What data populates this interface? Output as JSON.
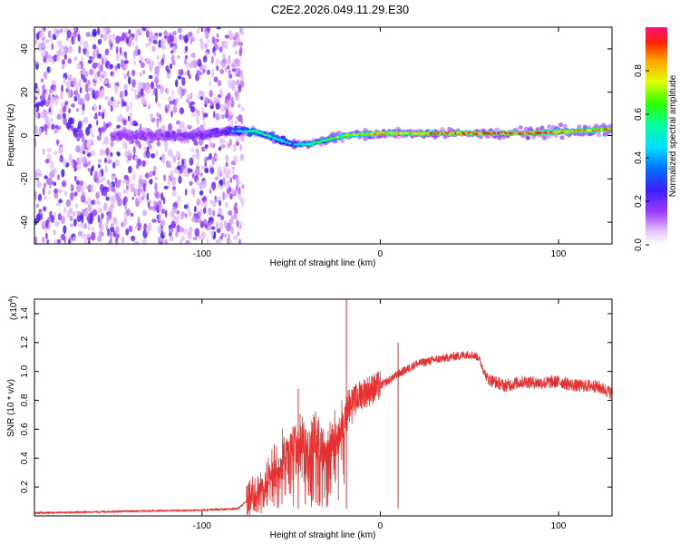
{
  "title": "C2E2.2026.049.11.29.E30",
  "chart_data": [
    {
      "type": "heatmap",
      "name": "spectrogram",
      "xlabel": "Height of straight line (km)",
      "ylabel": "Frequency (Hz)",
      "xlim": [
        -194,
        130
      ],
      "ylim": [
        -50,
        50
      ],
      "xticks": [
        -100,
        0,
        100
      ],
      "xtick_labels": [
        "-100",
        "0",
        "100"
      ],
      "yticks": [
        -40,
        -20,
        0,
        20,
        40
      ],
      "ytick_labels": [
        "-40",
        "-20",
        "0",
        "20",
        "40"
      ],
      "colorbar": {
        "label": "Normalized spectral amplitude",
        "range": [
          0,
          1
        ],
        "ticks": [
          0,
          0.2,
          0.4,
          0.6,
          0.8
        ],
        "tick_labels": [
          "0.0",
          "0.2",
          "0.4",
          "0.6",
          "0.8"
        ]
      },
      "noise_region_xmax": -81,
      "ridge": [
        {
          "x": -150,
          "f": 0,
          "amp": 0.25
        },
        {
          "x": -100,
          "f": 0,
          "amp": 0.3
        },
        {
          "x": -82,
          "f": 2,
          "amp": 0.45
        },
        {
          "x": -70,
          "f": 2,
          "amp": 0.6
        },
        {
          "x": -60,
          "f": -1,
          "amp": 0.55
        },
        {
          "x": -50,
          "f": -4,
          "amp": 0.45
        },
        {
          "x": -40,
          "f": -4,
          "amp": 0.6
        },
        {
          "x": -30,
          "f": -2,
          "amp": 0.65
        },
        {
          "x": -20,
          "f": 0,
          "amp": 0.75
        },
        {
          "x": 0,
          "f": 1,
          "amp": 0.85
        },
        {
          "x": 40,
          "f": 1,
          "amp": 0.95
        },
        {
          "x": 80,
          "f": 1,
          "amp": 1.0
        },
        {
          "x": 110,
          "f": 2,
          "amp": 0.9
        },
        {
          "x": 130,
          "f": 3,
          "amp": 0.9
        }
      ]
    },
    {
      "type": "line",
      "name": "snr",
      "xlabel": "Height of straight line (km)",
      "ylabel": "SNR (10 * v/v)",
      "y_multiplier": "(x10",
      "y_multiplier_exp": "4",
      "y_multiplier_close": ")",
      "xlim": [
        -194,
        130
      ],
      "ylim": [
        0,
        1.5
      ],
      "xticks": [
        -100,
        0,
        100
      ],
      "xtick_labels": [
        "-100",
        "0",
        "100"
      ],
      "yticks": [
        0.2,
        0.4,
        0.6,
        0.8,
        1.0,
        1.2,
        1.4
      ],
      "ytick_labels": [
        "0.2",
        "0.4",
        "0.6",
        "0.8",
        "1.0",
        "1.2",
        "1.4"
      ],
      "color": "#e83030",
      "series": [
        {
          "name": "SNR",
          "x": [
            -194,
            -150,
            -100,
            -80,
            -70,
            -60,
            -50,
            -42,
            -36,
            -30,
            -22,
            -18,
            -10,
            0,
            10,
            20,
            30,
            40,
            50,
            55,
            60,
            70,
            80,
            90,
            100,
            110,
            120,
            125,
            130
          ],
          "y": [
            0.02,
            0.03,
            0.04,
            0.05,
            0.15,
            0.3,
            0.5,
            0.55,
            0.55,
            0.52,
            0.6,
            0.75,
            0.85,
            0.9,
            0.98,
            1.05,
            1.08,
            1.1,
            1.12,
            1.1,
            0.95,
            0.9,
            0.93,
            0.92,
            0.93,
            0.9,
            0.9,
            0.88,
            0.85
          ]
        }
      ],
      "annotations": [
        {
          "x": -19,
          "y": 1.5,
          "note": "spike"
        },
        {
          "x": -46,
          "y": 0.88,
          "note": "spike"
        },
        {
          "x": 10,
          "y": 1.2,
          "note": "spike"
        }
      ]
    }
  ]
}
